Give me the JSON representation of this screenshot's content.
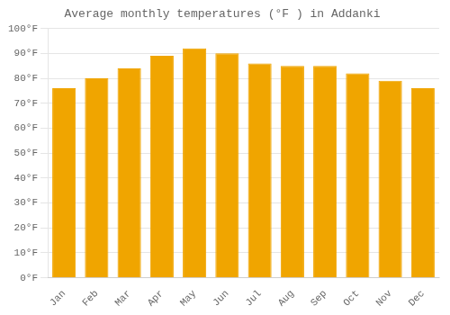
{
  "chart_data": {
    "type": "bar",
    "title": "Average monthly temperatures (°F ) in Addanki",
    "categories": [
      "Jan",
      "Feb",
      "Mar",
      "Apr",
      "May",
      "Jun",
      "Jul",
      "Aug",
      "Sep",
      "Oct",
      "Nov",
      "Dec"
    ],
    "values": [
      76,
      80,
      84,
      89,
      92,
      90,
      86,
      85,
      85,
      82,
      79,
      76
    ],
    "color": "#F0A500",
    "ylim": [
      0,
      100
    ],
    "yticks": [
      {
        "value": 0,
        "label": "0°F"
      },
      {
        "value": 10,
        "label": "10°F"
      },
      {
        "value": 20,
        "label": "20°F"
      },
      {
        "value": 30,
        "label": "30°F"
      },
      {
        "value": 40,
        "label": "40°F"
      },
      {
        "value": 50,
        "label": "50°F"
      },
      {
        "value": 60,
        "label": "60°F"
      },
      {
        "value": 70,
        "label": "70°F"
      },
      {
        "value": 80,
        "label": "80°F"
      },
      {
        "value": 90,
        "label": "90°F"
      },
      {
        "value": 100,
        "label": "100°F"
      }
    ],
    "grid": true
  }
}
